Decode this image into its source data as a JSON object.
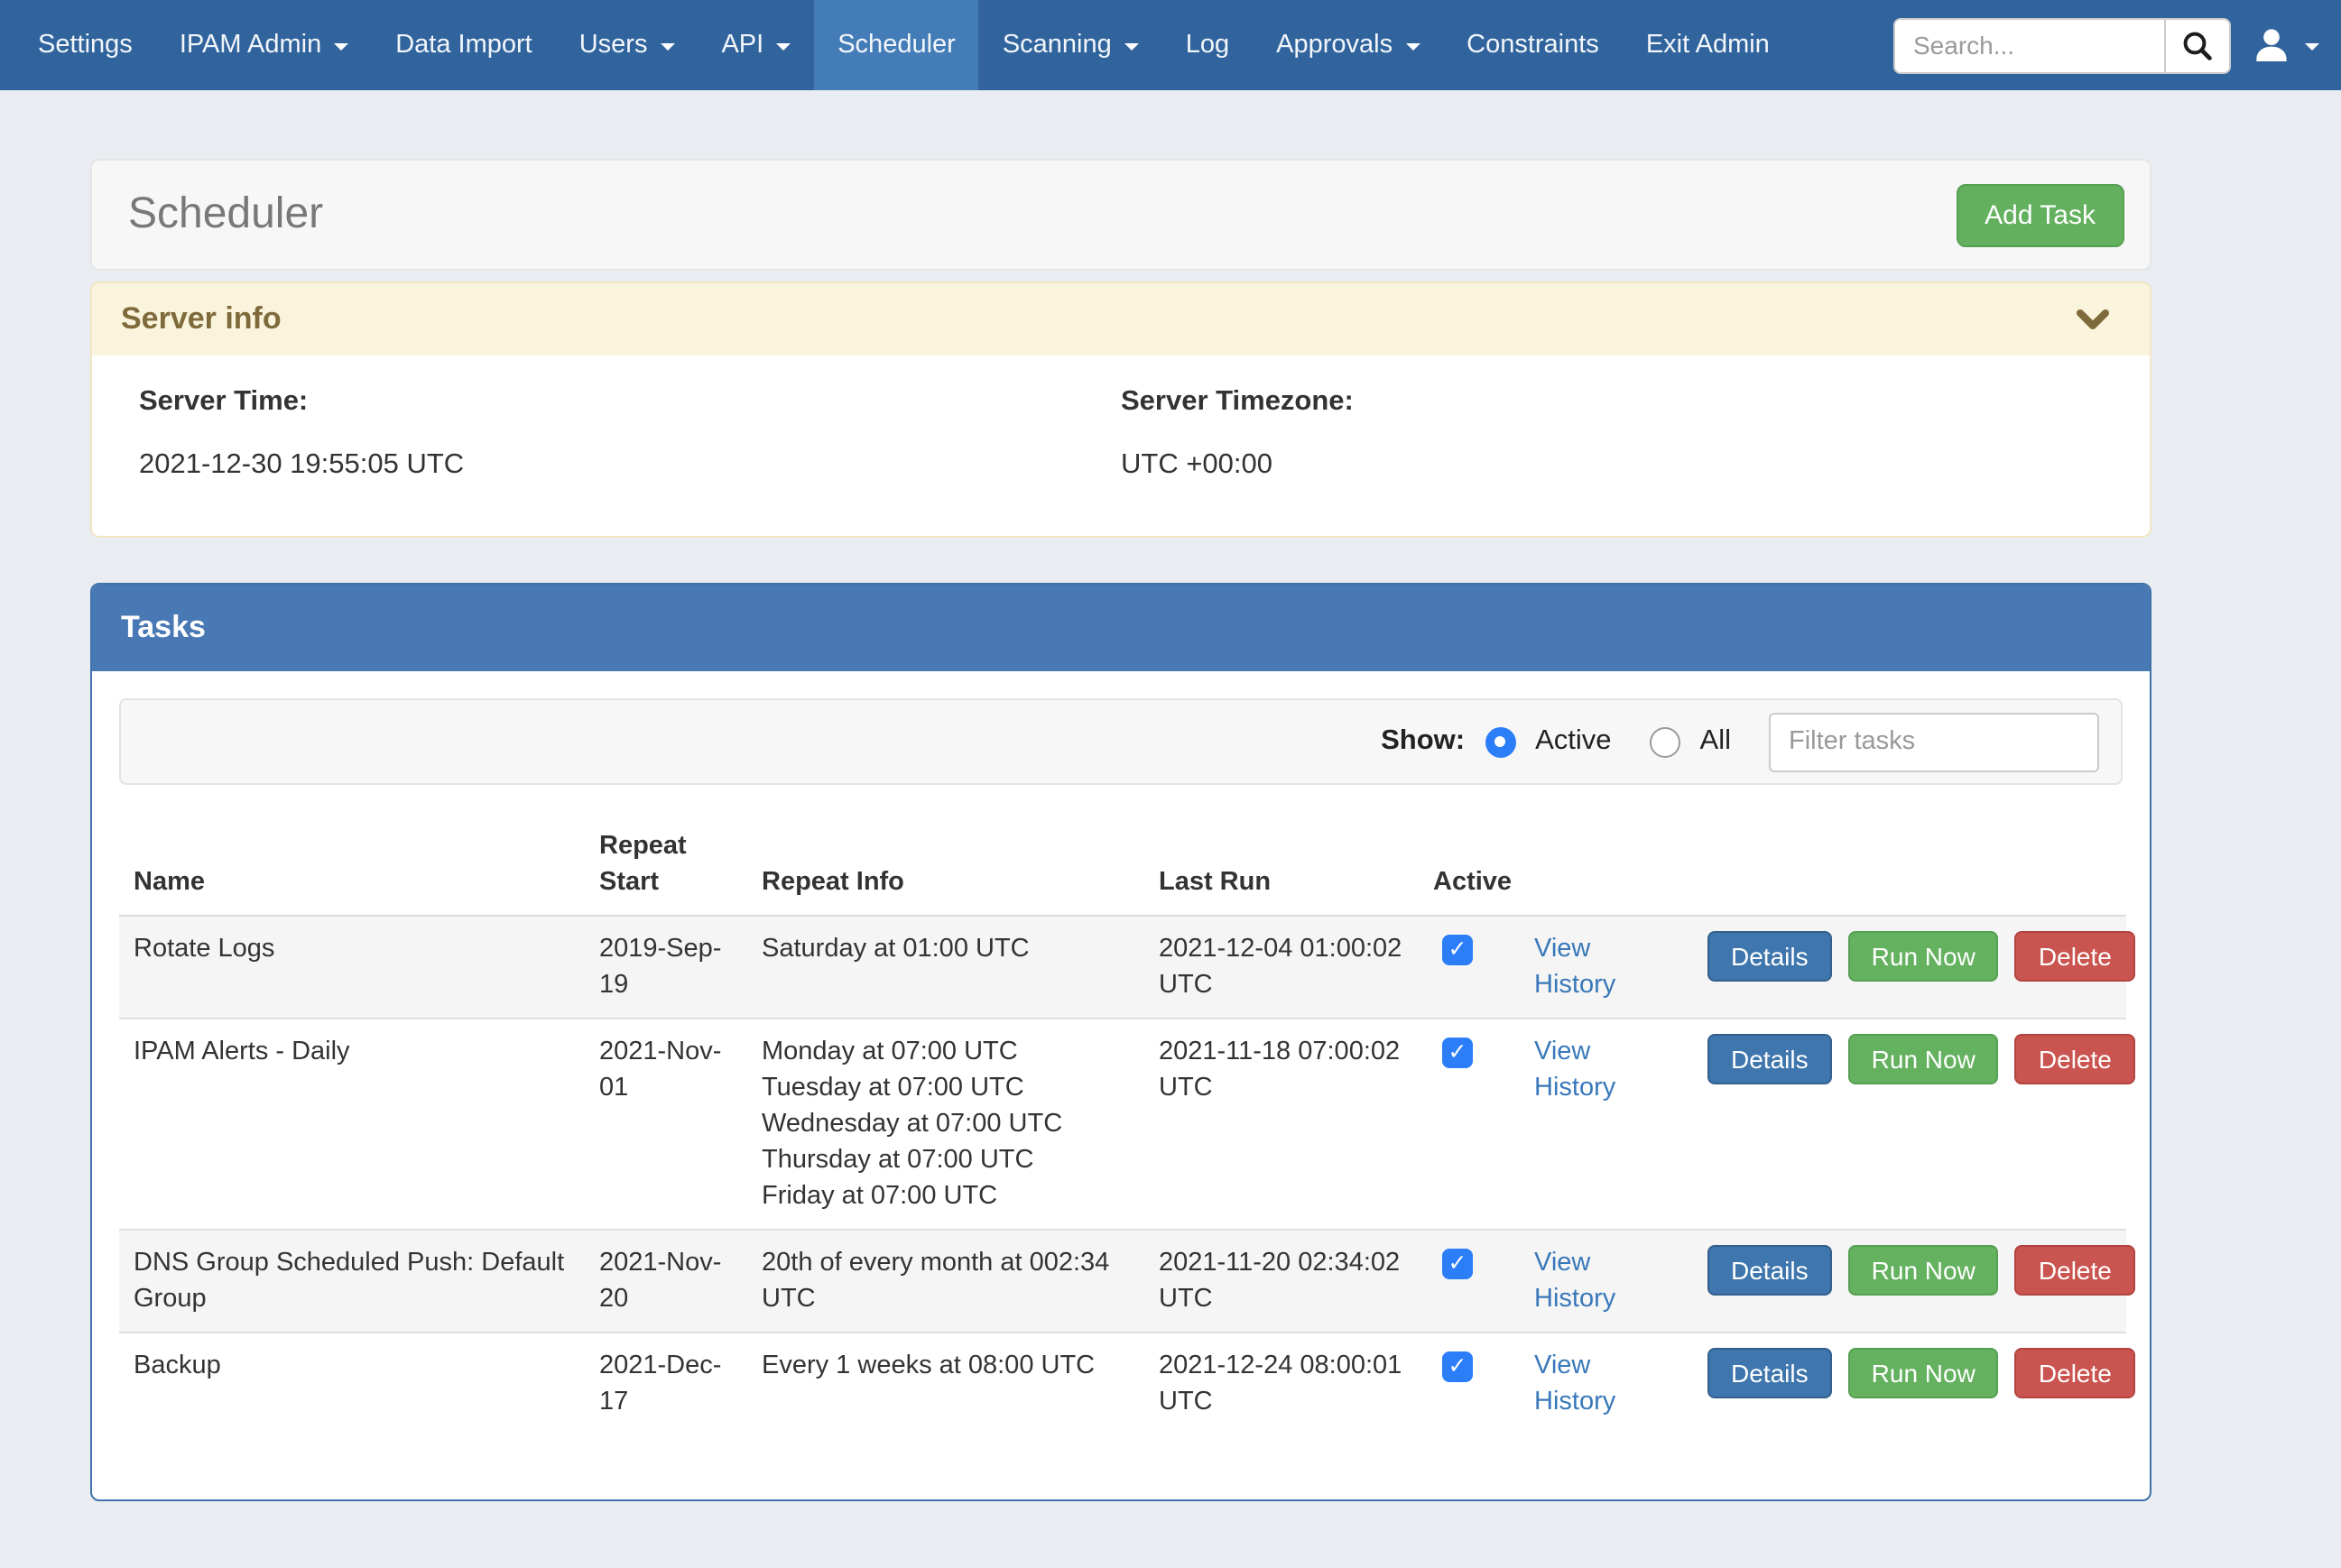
{
  "nav": {
    "items": [
      {
        "label": "Settings",
        "dropdown": false,
        "active": false
      },
      {
        "label": "IPAM Admin",
        "dropdown": true,
        "active": false
      },
      {
        "label": "Data Import",
        "dropdown": false,
        "active": false
      },
      {
        "label": "Users",
        "dropdown": true,
        "active": false
      },
      {
        "label": "API",
        "dropdown": true,
        "active": false
      },
      {
        "label": "Scheduler",
        "dropdown": false,
        "active": true
      },
      {
        "label": "Scanning",
        "dropdown": true,
        "active": false
      },
      {
        "label": "Log",
        "dropdown": false,
        "active": false
      },
      {
        "label": "Approvals",
        "dropdown": true,
        "active": false
      },
      {
        "label": "Constraints",
        "dropdown": false,
        "active": false
      },
      {
        "label": "Exit Admin",
        "dropdown": false,
        "active": false
      }
    ],
    "search_placeholder": "Search..."
  },
  "page": {
    "title": "Scheduler",
    "add_task_label": "Add Task"
  },
  "server_info": {
    "title": "Server info",
    "time_label": "Server Time:",
    "time_value": "2021-12-30 19:55:05 UTC",
    "tz_label": "Server Timezone:",
    "tz_value": "UTC +00:00"
  },
  "tasks": {
    "title": "Tasks",
    "show_label": "Show:",
    "show_options": [
      {
        "label": "Active",
        "selected": true
      },
      {
        "label": "All",
        "selected": false
      }
    ],
    "filter_placeholder": "Filter tasks",
    "columns": [
      "Name",
      "Repeat Start",
      "Repeat Info",
      "Last Run",
      "Active"
    ],
    "actions": {
      "view_history": "View History",
      "details": "Details",
      "run_now": "Run Now",
      "delete": "Delete"
    },
    "rows": [
      {
        "name": "Rotate Logs",
        "repeat_start": "2019-Sep-19",
        "repeat_info": [
          "Saturday at 01:00 UTC"
        ],
        "last_run": "2021-12-04 01:00:02 UTC",
        "active": true
      },
      {
        "name": "IPAM Alerts - Daily",
        "repeat_start": "2021-Nov-01",
        "repeat_info": [
          "Monday at 07:00 UTC",
          "Tuesday at 07:00 UTC",
          "Wednesday at 07:00 UTC",
          "Thursday at 07:00 UTC",
          "Friday at 07:00 UTC"
        ],
        "last_run": "2021-11-18 07:00:02 UTC",
        "active": true
      },
      {
        "name": "DNS Group Scheduled Push: Default Group",
        "repeat_start": "2021-Nov-20",
        "repeat_info": [
          "20th of every month at 002:34 UTC"
        ],
        "last_run": "2021-11-20 02:34:02 UTC",
        "active": true
      },
      {
        "name": "Backup",
        "repeat_start": "2021-Dec-17",
        "repeat_info": [
          "Every 1 weeks at 08:00 UTC"
        ],
        "last_run": "2021-12-24 08:00:01 UTC",
        "active": true
      }
    ]
  },
  "colors": {
    "navbar": "#31649d",
    "navbar_active": "#447cb8",
    "panel_header_blue": "#4879b4",
    "warning_header_bg": "#fbf4dc",
    "warning_text": "#7e6a3a",
    "button_green": "#63b05e",
    "button_blue": "#3f76ad",
    "button_red": "#ca544f",
    "link_blue": "#3978ba",
    "checkbox_blue": "#2b7df8",
    "page_background": "#e9ecf1"
  }
}
